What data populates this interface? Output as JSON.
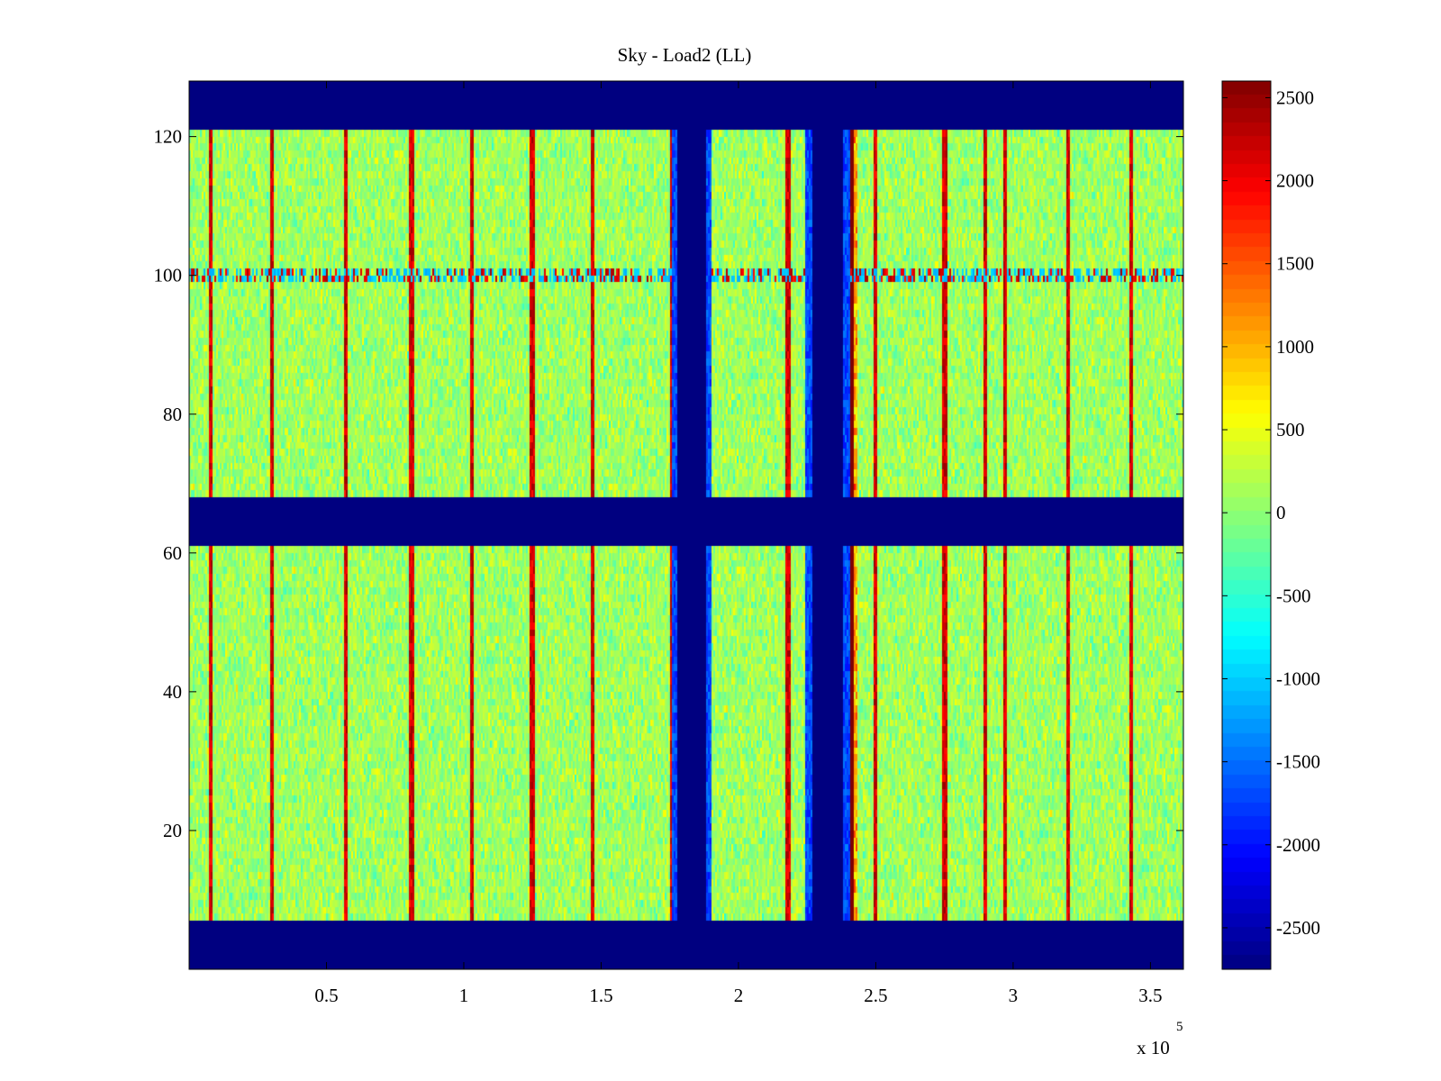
{
  "chart_data": {
    "type": "heatmap",
    "title": "Sky - Load2 (LL)",
    "xlabel": "",
    "ylabel": "",
    "xlim": [
      0,
      362000
    ],
    "ylim": [
      0,
      128
    ],
    "x_ticks": [
      50000,
      100000,
      150000,
      200000,
      250000,
      300000,
      350000
    ],
    "x_tick_labels": [
      "0.5",
      "1",
      "1.5",
      "2",
      "2.5",
      "3",
      "3.5"
    ],
    "x_exponent_label": {
      "base": "x 10",
      "power": "5"
    },
    "y_ticks": [
      20,
      40,
      60,
      80,
      100,
      120
    ],
    "y_tick_labels": [
      "20",
      "40",
      "60",
      "80",
      "100",
      "120"
    ],
    "colormap": "jet",
    "clim": [
      -2750,
      2600
    ],
    "colorbar_ticks": [
      2500,
      2000,
      1500,
      1000,
      500,
      0,
      -500,
      -1000,
      -1500,
      -2000,
      -2500
    ],
    "colorbar_labels": [
      "2500",
      "2000",
      "1500",
      "1000",
      "500",
      "0",
      "-500",
      "-1000",
      "-1500",
      "-2000",
      "-2500"
    ],
    "structure": {
      "masked_row_bands": [
        [
          0,
          7
        ],
        [
          61,
          68
        ],
        [
          121,
          128
        ]
      ],
      "masked_column_bands": [
        [
          178000,
          188000
        ],
        [
          227000,
          238000
        ]
      ],
      "bright_columns_x": [
        8000,
        30000,
        57000,
        81000,
        103000,
        125000,
        147000,
        176000,
        218000,
        226000,
        241000,
        250000,
        275000,
        290000,
        297000,
        320000,
        343000
      ],
      "feature_row_y": 100,
      "background_mean": 0,
      "background_spread": 500
    }
  }
}
